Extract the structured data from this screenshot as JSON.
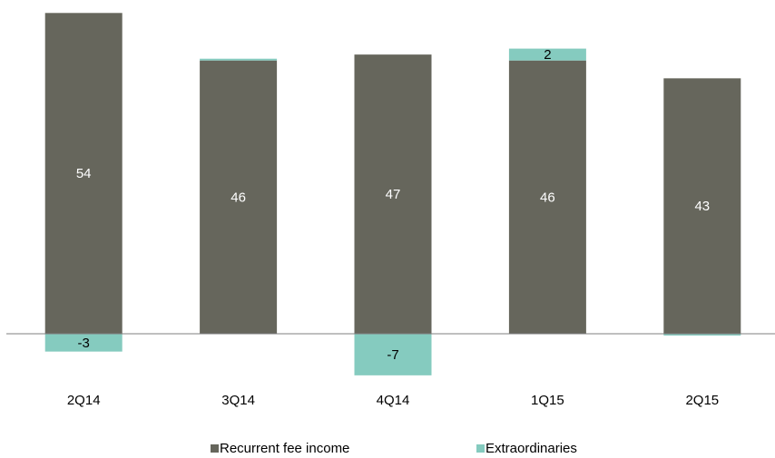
{
  "chart_data": {
    "type": "bar",
    "stacked": true,
    "categories": [
      "2Q14",
      "3Q14",
      "4Q14",
      "1Q15",
      "2Q15"
    ],
    "series": [
      {
        "name": "Recurrent fee income",
        "values": [
          54,
          46,
          47,
          46,
          43
        ],
        "labels": [
          "54",
          "46",
          "47",
          "46",
          "43"
        ],
        "color": "#66665c"
      },
      {
        "name": "Extraordinaries",
        "values": [
          -3,
          0.3,
          -7,
          2,
          -0.3
        ],
        "labels": [
          "-3",
          "",
          "-7",
          "2",
          ""
        ],
        "color": "#85cbbf"
      }
    ],
    "grid": false,
    "legend_position": "bottom"
  }
}
